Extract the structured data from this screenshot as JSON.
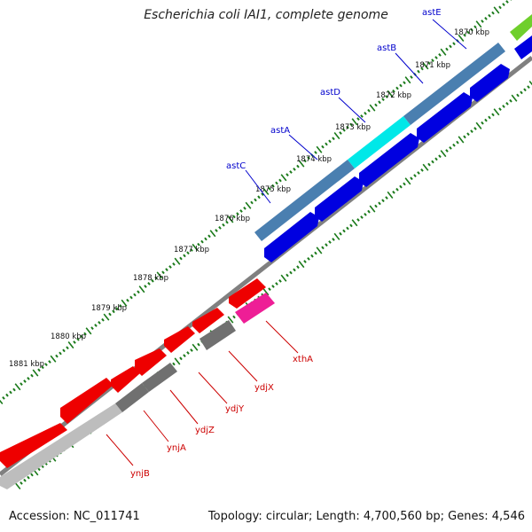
{
  "title": "Escherichia coli IAI1, complete genome",
  "footer": {
    "accession": "Accession: NC_011741",
    "summary": "Topology: circular; Length: 4,700,560 bp; Genes: 4,546"
  },
  "colors": {
    "forward_label": "#0000cc",
    "reverse_label": "#cc0000",
    "tick": "#1a7a1a",
    "backbone": "#808080",
    "cds_blue": "#0000e0",
    "cds_steel": "#4a7fb0",
    "cds_cyan": "#00e8e8",
    "cds_red": "#ee0000",
    "cds_gray": "#707070",
    "cds_lightgray": "#bdbdbd",
    "cds_pink": "#ee1e96",
    "cds_green": "#6fcf2c"
  },
  "scale_labels": [
    {
      "text": "1870 kbp"
    },
    {
      "text": "1871 kbp"
    },
    {
      "text": "1872 kbp"
    },
    {
      "text": "1873 kbp"
    },
    {
      "text": "1874 kbp"
    },
    {
      "text": "1875 kbp"
    },
    {
      "text": "1876 kbp"
    },
    {
      "text": "1877 kbp"
    },
    {
      "text": "1878 kbp"
    },
    {
      "text": "1879 kbp"
    },
    {
      "text": "1880 kbp"
    },
    {
      "text": "1881 kbp"
    }
  ],
  "forward_genes": [
    "astE",
    "astB",
    "astD",
    "astA",
    "astC"
  ],
  "reverse_genes": [
    "xthA",
    "ydjX",
    "ydjY",
    "ydjZ",
    "ynjA",
    "ynjB"
  ]
}
